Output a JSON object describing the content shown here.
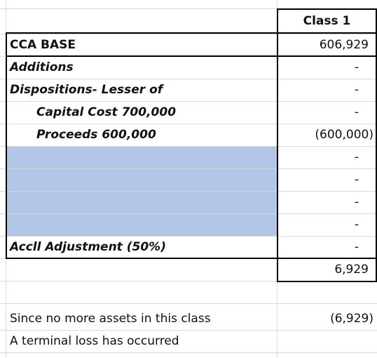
{
  "header": {
    "column": "Class 1"
  },
  "rows": [
    {
      "label": "CCA BASE",
      "value": "606,929"
    },
    {
      "label": "Additions",
      "value": "-"
    },
    {
      "label": "Dispositions- Lesser of",
      "value": "-"
    },
    {
      "label": "Capital Cost 700,000",
      "value": "-"
    },
    {
      "label": "Proceeds 600,000",
      "value": "(600,000)"
    },
    {
      "value": "-"
    },
    {
      "value": "-"
    },
    {
      "value": "-"
    },
    {
      "value": "-"
    },
    {
      "label": "Accll Adjustment (50%)",
      "value": "-"
    }
  ],
  "total": {
    "value": "6,929"
  },
  "note": {
    "lines": [
      "Since no more assets in this class",
      "A terminal loss has occurred"
    ],
    "value": "(6,929)"
  }
}
